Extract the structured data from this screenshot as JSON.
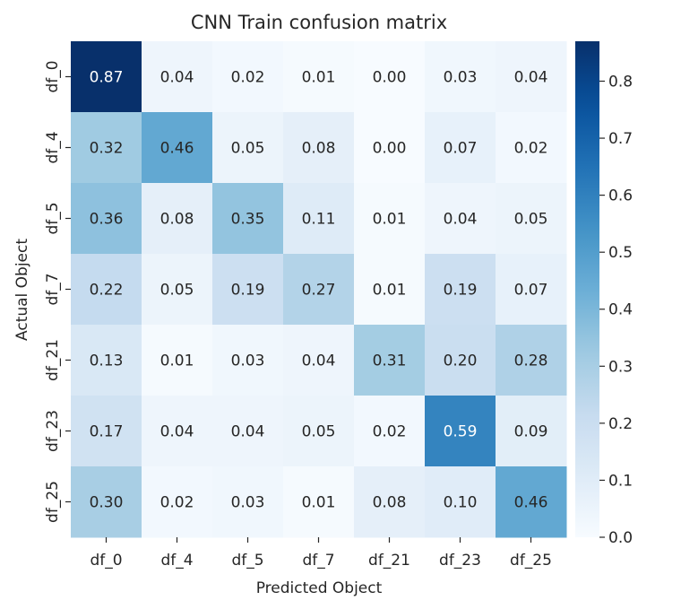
{
  "chart_data": {
    "type": "heatmap",
    "title": "CNN Train confusion matrix",
    "xlabel": "Predicted Object",
    "ylabel": "Actual Object",
    "x_categories": [
      "df_0",
      "df_4",
      "df_5",
      "df_7",
      "df_21",
      "df_23",
      "df_25"
    ],
    "y_categories": [
      "df_0",
      "df_4",
      "df_5",
      "df_7",
      "df_21",
      "df_23",
      "df_25"
    ],
    "values": [
      [
        0.87,
        0.04,
        0.02,
        0.01,
        0.0,
        0.03,
        0.04
      ],
      [
        0.32,
        0.46,
        0.05,
        0.08,
        0.0,
        0.07,
        0.02
      ],
      [
        0.36,
        0.08,
        0.35,
        0.11,
        0.01,
        0.04,
        0.05
      ],
      [
        0.22,
        0.05,
        0.19,
        0.27,
        0.01,
        0.19,
        0.07
      ],
      [
        0.13,
        0.01,
        0.03,
        0.04,
        0.31,
        0.2,
        0.28
      ],
      [
        0.17,
        0.04,
        0.04,
        0.05,
        0.02,
        0.59,
        0.09
      ],
      [
        0.3,
        0.02,
        0.03,
        0.01,
        0.08,
        0.1,
        0.46
      ]
    ],
    "value_format": "2 decimals",
    "colormap": "Blues",
    "colorbar": {
      "vmin": 0.0,
      "vmax": 0.87,
      "ticks": [
        0.0,
        0.1,
        0.2,
        0.3,
        0.4,
        0.5,
        0.6,
        0.7,
        0.8
      ],
      "tick_labels": [
        "0.0",
        "0.1",
        "0.2",
        "0.3",
        "0.4",
        "0.5",
        "0.6",
        "0.7",
        "0.8"
      ]
    },
    "colors": {
      "low": "#f7fbff",
      "high": "#08306b",
      "text_dark": "#262626",
      "text_light": "#ffffff"
    },
    "grid": false
  }
}
